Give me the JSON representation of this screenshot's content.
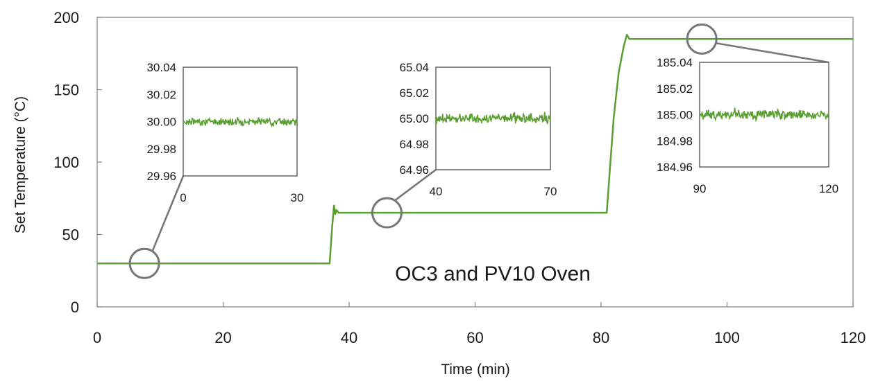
{
  "chart_data": [
    {
      "type": "line",
      "role": "main",
      "title": "",
      "annotation": "OC3 and PV10 Oven",
      "xlabel": "Time (min)",
      "ylabel": "Set Temperature (°C)",
      "xlim": [
        0,
        120
      ],
      "ylim": [
        0,
        200
      ],
      "x_ticks": [
        "0",
        "20",
        "40",
        "60",
        "80",
        "100",
        "120"
      ],
      "y_ticks": [
        "0",
        "50",
        "100",
        "150",
        "200"
      ],
      "grid": false,
      "series": [
        {
          "color": "#5a9e32",
          "x": [
            0,
            36.9,
            37.3,
            37.6,
            37.8,
            38.0,
            38.3,
            80.9,
            81.4,
            82.0,
            82.8,
            83.6,
            84.1,
            84.5,
            120
          ],
          "y": [
            30,
            30,
            55,
            70,
            64,
            67,
            65,
            65,
            95,
            130,
            162,
            180,
            188,
            185,
            185
          ]
        }
      ]
    },
    {
      "type": "line",
      "role": "inset",
      "zoom_from_x": 7.5,
      "zoom_value": 30,
      "xlim": [
        0,
        30
      ],
      "ylim": [
        29.96,
        30.04
      ],
      "x_ticks": [
        "0",
        "30"
      ],
      "y_ticks": [
        "29.96",
        "29.98",
        "30.00",
        "30.02",
        "30.04"
      ],
      "series": [
        {
          "color": "#5a9e32",
          "mean": 30.0,
          "noise_amplitude": 0.004
        }
      ]
    },
    {
      "type": "line",
      "role": "inset",
      "zoom_from_x": 46,
      "zoom_value": 65,
      "xlim": [
        40,
        70
      ],
      "ylim": [
        64.96,
        65.04
      ],
      "x_ticks": [
        "40",
        "70"
      ],
      "y_ticks": [
        "64.96",
        "64.98",
        "65.00",
        "65.02",
        "65.04"
      ],
      "series": [
        {
          "color": "#5a9e32",
          "mean": 65.0,
          "noise_amplitude": 0.006
        }
      ]
    },
    {
      "type": "line",
      "role": "inset",
      "zoom_from_x": 96,
      "zoom_value": 185,
      "xlim": [
        90,
        120
      ],
      "ylim": [
        184.96,
        185.04
      ],
      "x_ticks": [
        "90",
        "120"
      ],
      "y_ticks": [
        "184.96",
        "184.98",
        "185.00",
        "185.02",
        "185.04"
      ],
      "series": [
        {
          "color": "#5a9e32",
          "mean": 185.0,
          "noise_amplitude": 0.006
        }
      ]
    }
  ],
  "colors": {
    "series": "#5a9e32",
    "axis": "#7f7f7f",
    "frame": "#595959",
    "callout": "#767676",
    "text": "#1a1a1a"
  }
}
